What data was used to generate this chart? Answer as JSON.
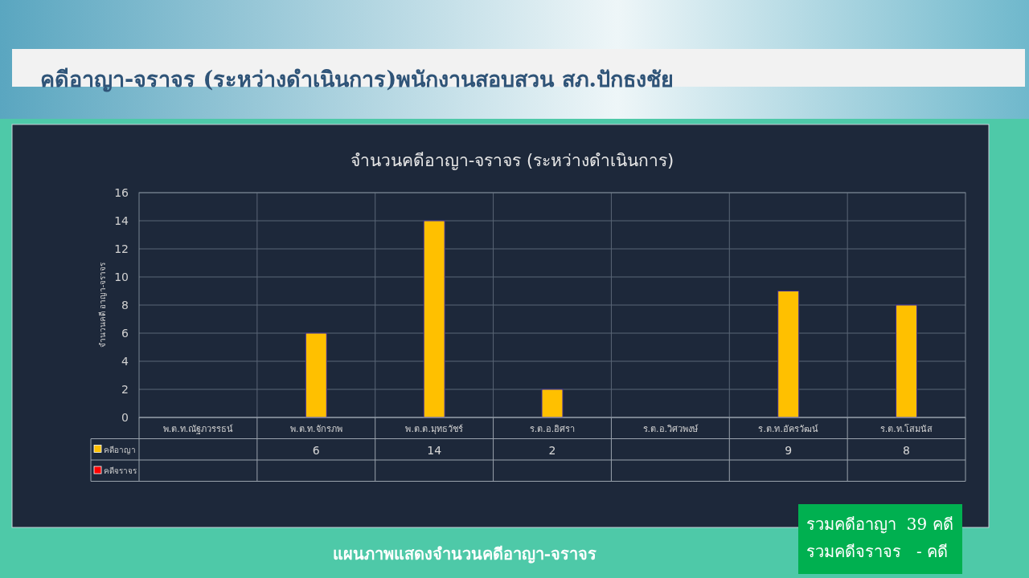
{
  "chart_data": {
    "type": "bar",
    "title": "จำนวนคดีอาญา-จราจร (ระหว่างดำเนินการ)",
    "ylabel": "จำนวนคดี อาญา-จราจร",
    "categories": [
      "พ.ต.ท.ณัฐภวรรธน์",
      "พ.ต.ท.จักรภพ",
      "พ.ต.ต.มุทธวัชร์",
      "ร.ต.อ.อิศรา",
      "ร.ต.อ.วิศวพงษ์",
      "ร.ต.ท.อัครวัฒน์",
      "ร.ต.ท.โสมนัส"
    ],
    "series": [
      {
        "name": "คดีอาญา",
        "color": "#ffc000",
        "values": [
          null,
          6,
          14,
          2,
          null,
          9,
          8
        ]
      },
      {
        "name": "คดีจราจร",
        "color": "#ff0000",
        "values": [
          null,
          null,
          null,
          null,
          null,
          null,
          null
        ]
      }
    ],
    "ylim": [
      0,
      16
    ],
    "yticks": [
      0,
      2,
      4,
      6,
      8,
      10,
      12,
      14,
      16
    ],
    "grid": true,
    "legend": "bottom",
    "data_labels": true,
    "annotations": [
      "คดีอาญา-จราจร (ระหว่างดำเนินการ)พนักงานสอบสวน สภ.ปักธงชัย",
      "แผนภาพแสดงจำนวนคดีอาญา-จราจร",
      "รวมคดีอาญา  39 คดี",
      "รวมคดีจราจร   - คดี"
    ]
  }
}
